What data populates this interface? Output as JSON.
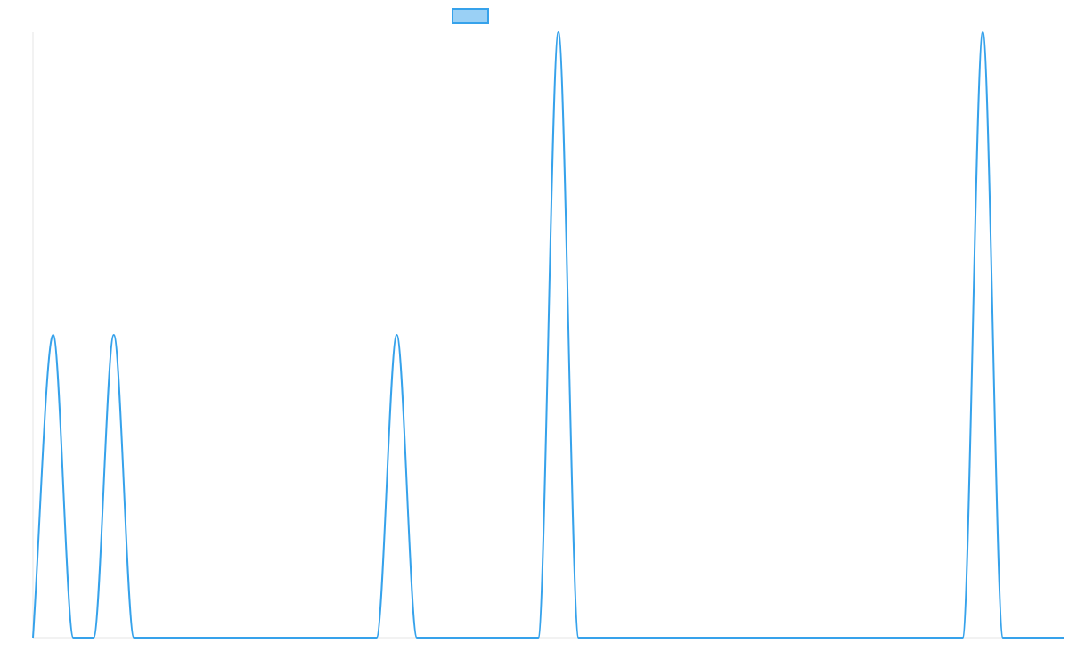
{
  "chart_data": {
    "type": "line",
    "title": "",
    "xlabel": "",
    "ylabel": "",
    "grid": false,
    "legend": "top",
    "x": [
      0,
      1,
      2,
      3,
      4,
      5,
      6,
      7,
      8,
      9,
      10,
      11,
      12,
      13,
      14,
      15,
      16,
      17,
      18,
      19,
      20,
      21,
      22,
      23,
      24,
      25,
      26,
      27,
      28,
      29,
      30,
      31,
      32,
      33,
      34,
      35,
      36,
      37,
      38,
      39,
      40,
      41,
      42,
      43,
      44,
      45,
      46,
      47,
      48,
      49,
      50,
      51
    ],
    "xlim": [
      0,
      51
    ],
    "ylim": [
      0,
      3
    ],
    "series": [
      {
        "name": "",
        "color": "#36a2eb",
        "fill": "#9ad0f5",
        "values": [
          0,
          1.5,
          0,
          0,
          1.5,
          0,
          0,
          0,
          0,
          0,
          0,
          0,
          0,
          0,
          0,
          0,
          0,
          0,
          1.5,
          0,
          0,
          0,
          0,
          0,
          0,
          0,
          3,
          0,
          0,
          0,
          0,
          0,
          0,
          0,
          0,
          0,
          0,
          0,
          0,
          0,
          0,
          0,
          0,
          0,
          0,
          0,
          0,
          3,
          0,
          0,
          0,
          0
        ]
      }
    ]
  }
}
